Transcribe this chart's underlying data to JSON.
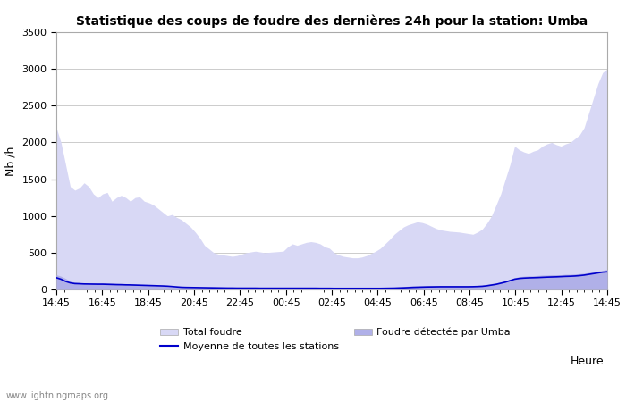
{
  "title": "Statistique des coups de foudre des dernières 24h pour la station: Umba",
  "xlabel": "Heure",
  "ylabel": "Nb /h",
  "ylim": [
    0,
    3500
  ],
  "yticks": [
    0,
    500,
    1000,
    1500,
    2000,
    2500,
    3000,
    3500
  ],
  "xtick_labels": [
    "14:45",
    "16:45",
    "18:45",
    "20:45",
    "22:45",
    "00:45",
    "02:45",
    "04:45",
    "06:45",
    "08:45",
    "10:45",
    "12:45",
    "14:45"
  ],
  "bg_color": "#ffffff",
  "plot_bg_color": "#ffffff",
  "grid_color": "#cccccc",
  "fill_total_color": "#d8d8f5",
  "fill_umba_color": "#b0b0e8",
  "line_color": "#0000cc",
  "watermark": "www.lightningmaps.org",
  "total_foudre": [
    2200,
    2000,
    1700,
    1400,
    1350,
    1380,
    1450,
    1400,
    1300,
    1250,
    1300,
    1320,
    1200,
    1250,
    1280,
    1250,
    1200,
    1250,
    1260,
    1200,
    1180,
    1150,
    1100,
    1050,
    1000,
    1020,
    980,
    950,
    900,
    850,
    780,
    700,
    600,
    550,
    500,
    480,
    470,
    460,
    450,
    460,
    480,
    500,
    510,
    520,
    510,
    500,
    505,
    510,
    515,
    520,
    580,
    620,
    600,
    620,
    640,
    650,
    640,
    620,
    580,
    560,
    500,
    470,
    450,
    440,
    430,
    430,
    440,
    460,
    490,
    520,
    560,
    620,
    680,
    750,
    800,
    850,
    880,
    900,
    920,
    910,
    890,
    860,
    830,
    810,
    800,
    790,
    785,
    780,
    770,
    760,
    750,
    780,
    820,
    900,
    1000,
    1150,
    1300,
    1500,
    1700,
    1950,
    1900,
    1870,
    1850,
    1880,
    1900,
    1950,
    1980,
    2000,
    1970,
    1950,
    1980,
    2000,
    2050,
    2100,
    2200,
    2400,
    2600,
    2800,
    2950,
    3000
  ],
  "foudre_umba": [
    200,
    180,
    150,
    110,
    100,
    95,
    80,
    82,
    85,
    88,
    90,
    87,
    85,
    82,
    80,
    78,
    75,
    70,
    65,
    60,
    55,
    52,
    50,
    45,
    40,
    35,
    30,
    28,
    27,
    26,
    25,
    24,
    24,
    23,
    23,
    22,
    22,
    21,
    21,
    21,
    21,
    22,
    22,
    22,
    22,
    22,
    22,
    22,
    22,
    22,
    23,
    23,
    23,
    23,
    24,
    24,
    24,
    23,
    23,
    23,
    22,
    22,
    21,
    21,
    20,
    20,
    20,
    20,
    20,
    20,
    20,
    22,
    25,
    30,
    35,
    40,
    45,
    50,
    52,
    53,
    54,
    55,
    54,
    53,
    52,
    51,
    51,
    50,
    50,
    50,
    50,
    55,
    60,
    70,
    80,
    90,
    100,
    120,
    140,
    160,
    175,
    180,
    185,
    185,
    190,
    195,
    195,
    200,
    200,
    200,
    205,
    205,
    210,
    215,
    220,
    230,
    240,
    250,
    260,
    270
  ],
  "moyenne": [
    160,
    140,
    110,
    90,
    80,
    78,
    75,
    74,
    73,
    72,
    72,
    70,
    68,
    66,
    65,
    63,
    62,
    60,
    58,
    56,
    54,
    52,
    50,
    48,
    45,
    40,
    35,
    30,
    28,
    27,
    26,
    25,
    24,
    23,
    22,
    21,
    20,
    19,
    19,
    18,
    18,
    18,
    18,
    18,
    17,
    17,
    17,
    17,
    17,
    17,
    17,
    17,
    17,
    17,
    17,
    17,
    17,
    16,
    16,
    16,
    15,
    15,
    15,
    15,
    15,
    15,
    15,
    15,
    15,
    15,
    15,
    16,
    17,
    18,
    20,
    22,
    25,
    28,
    30,
    32,
    34,
    35,
    36,
    37,
    37,
    37,
    37,
    37,
    37,
    37,
    38,
    40,
    43,
    50,
    60,
    70,
    85,
    100,
    120,
    140,
    150,
    155,
    158,
    160,
    162,
    165,
    168,
    170,
    172,
    175,
    178,
    180,
    183,
    188,
    195,
    205,
    215,
    225,
    235,
    240
  ]
}
